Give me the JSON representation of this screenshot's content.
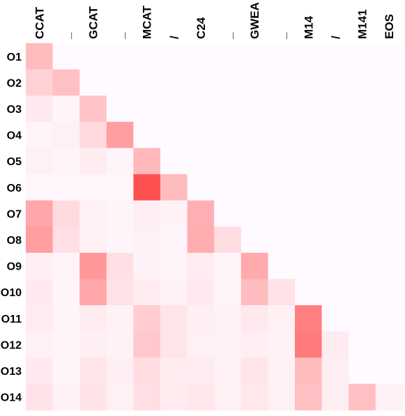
{
  "chart_data": {
    "type": "heatmap",
    "columns": [
      "CCAT",
      "_",
      "GCAT",
      "_",
      "MCAT",
      "/",
      "C24",
      "_",
      "GWEA",
      "_",
      "M14",
      "/",
      "M141",
      "EOS"
    ],
    "rows": [
      "O1",
      "O2",
      "O3",
      "O4",
      "O5",
      "O6",
      "O7",
      "O8",
      "O9",
      "O10",
      "O11",
      "O12",
      "O13",
      "O14"
    ],
    "colorscale": {
      "low": "#fffaff",
      "high": "#ff2b2b"
    },
    "values": [
      [
        0.3
      ],
      [
        0.2,
        0.28
      ],
      [
        0.08,
        0.03,
        0.26
      ],
      [
        0.03,
        0.05,
        0.16,
        0.44
      ],
      [
        0.05,
        0.03,
        0.07,
        0.03,
        0.32
      ],
      [
        0.02,
        0.02,
        0.02,
        0.02,
        0.82,
        0.3
      ],
      [
        0.4,
        0.15,
        0.05,
        0.03,
        0.06,
        0.04,
        0.36
      ],
      [
        0.45,
        0.13,
        0.05,
        0.03,
        0.05,
        0.03,
        0.37,
        0.14
      ],
      [
        0.06,
        0.03,
        0.48,
        0.13,
        0.04,
        0.03,
        0.07,
        0.03,
        0.38
      ],
      [
        0.08,
        0.03,
        0.4,
        0.12,
        0.07,
        0.04,
        0.08,
        0.03,
        0.3,
        0.12
      ],
      [
        0.07,
        0.03,
        0.07,
        0.04,
        0.22,
        0.1,
        0.06,
        0.04,
        0.08,
        0.05,
        0.6
      ],
      [
        0.05,
        0.03,
        0.06,
        0.04,
        0.24,
        0.1,
        0.05,
        0.04,
        0.06,
        0.04,
        0.62,
        0.07
      ],
      [
        0.08,
        0.03,
        0.1,
        0.06,
        0.14,
        0.07,
        0.07,
        0.05,
        0.1,
        0.05,
        0.3,
        0.06
      ],
      [
        0.11,
        0.04,
        0.11,
        0.05,
        0.13,
        0.07,
        0.09,
        0.05,
        0.09,
        0.05,
        0.28,
        0.06,
        0.28,
        0.05
      ]
    ]
  }
}
